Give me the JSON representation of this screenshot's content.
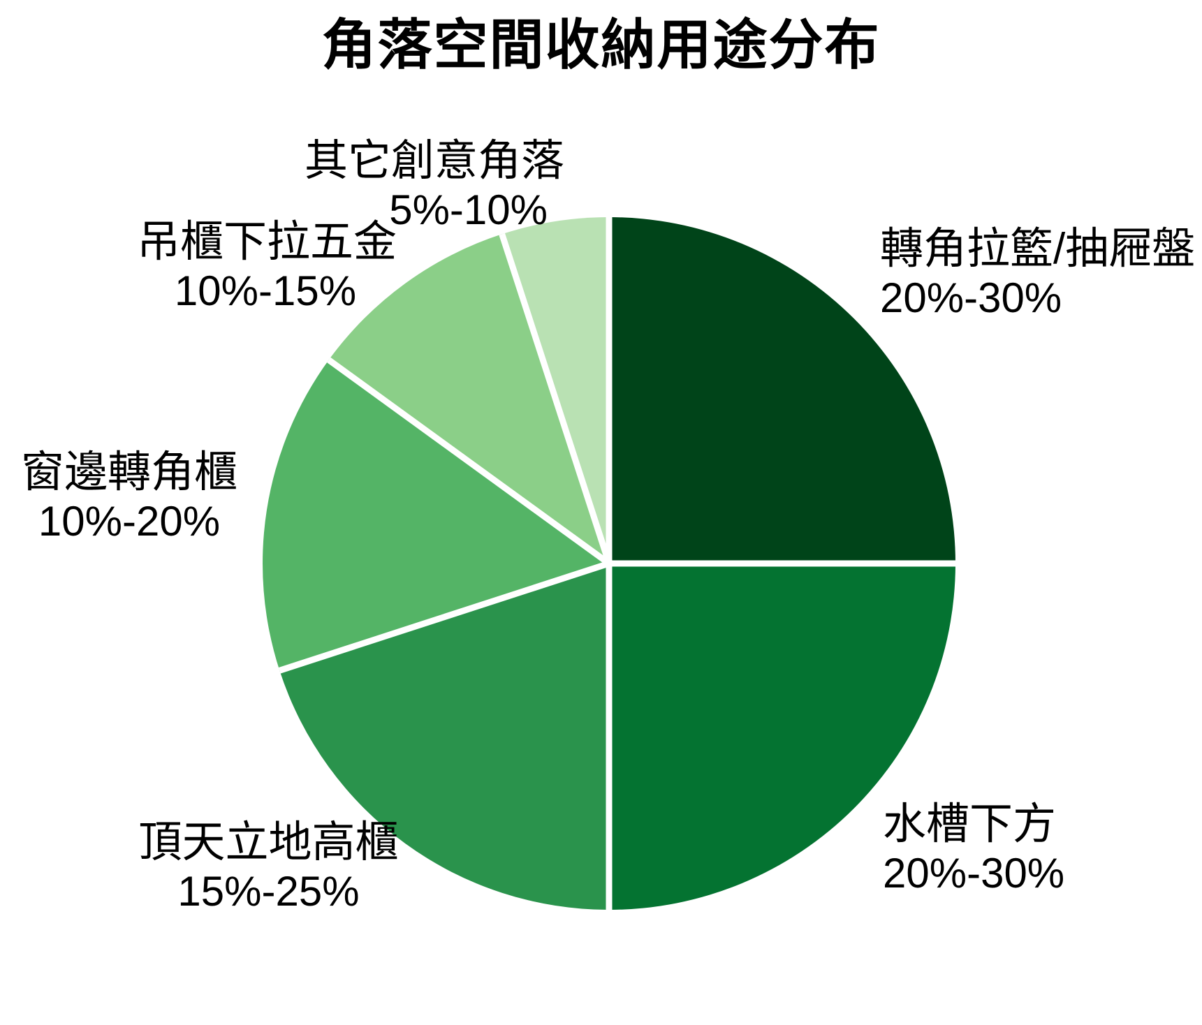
{
  "chart_data": {
    "type": "pie",
    "title": "角落空間收納用途分布",
    "legend_position": "none",
    "labels_position": "outside",
    "start_angle_deg": 0,
    "direction": "clockwise",
    "background_color": "#FFFFFF",
    "text_color": "#000000",
    "separator_color": "#FFFFFF",
    "slices": [
      {
        "label": "轉角拉籃/抽屜盤",
        "range": "20%-30%",
        "value": 25,
        "color": "#004419"
      },
      {
        "label": "水槽下方",
        "range": "20%-30%",
        "value": 25,
        "color": "#047331"
      },
      {
        "label": "頂天立地高櫃",
        "range": "15%-25%",
        "value": 20,
        "color": "#2A934C"
      },
      {
        "label": "窗邊轉角櫃",
        "range": "10%-20%",
        "value": 15,
        "color": "#54B466"
      },
      {
        "label": "吊櫃下拉五金",
        "range": "10%-15%",
        "value": 10,
        "color": "#8BCF88"
      },
      {
        "label": "其它創意角落",
        "range": "5%-10%",
        "value": 5,
        "color": "#B9E1B3"
      }
    ]
  }
}
